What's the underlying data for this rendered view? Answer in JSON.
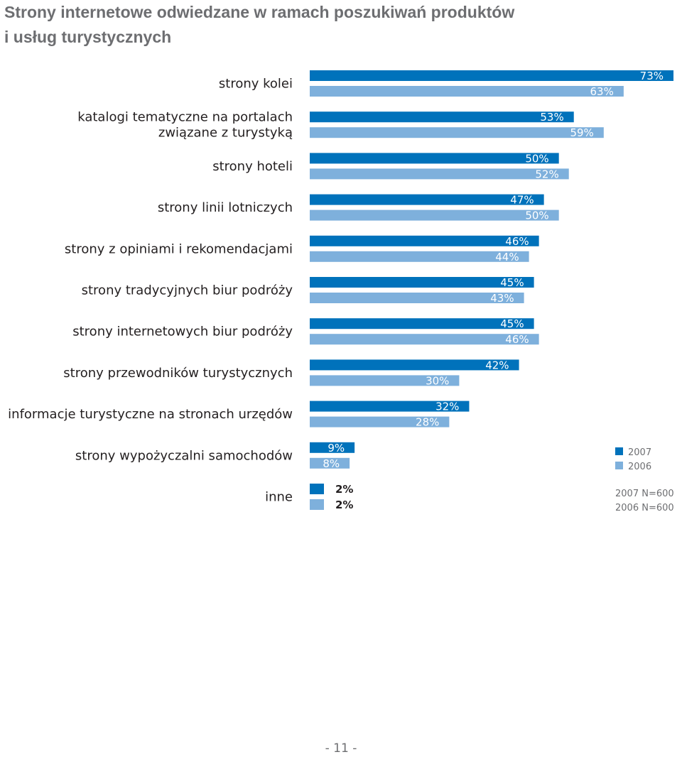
{
  "title": {
    "line1": "Strony internetowe odwiedzane w ramach poszukiwań produktów",
    "line2": "i usług turystycznych"
  },
  "colors": {
    "series_2007": "#0072bb",
    "series_2006": "#7eb0dc"
  },
  "chart_data": {
    "type": "bar",
    "orientation": "horizontal",
    "xlim": [
      0,
      73
    ],
    "categories": [
      "strony kolei",
      "katalogi tematyczne na portalach\nzwiązane z turystyką",
      "strony hoteli",
      "strony linii lotniczych",
      "strony z opiniami i rekomendacjami",
      "strony tradycyjnych biur podróży",
      "strony internetowych biur podróży",
      "strony przewodników turystycznych",
      "informacje turystyczne na stronach urzędów",
      "strony wypożyczalni samochodów",
      "inne"
    ],
    "series": [
      {
        "name": "2007",
        "values": [
          73,
          53,
          50,
          47,
          46,
          45,
          45,
          42,
          32,
          9,
          2
        ]
      },
      {
        "name": "2006",
        "values": [
          63,
          59,
          52,
          50,
          44,
          43,
          46,
          30,
          28,
          8,
          2
        ]
      }
    ],
    "value_labels": {
      "2007": [
        "73%",
        "53%",
        "50%",
        "47%",
        "46%",
        "45%",
        "45%",
        "42%",
        "32%",
        "9%",
        "2%"
      ],
      "2006": [
        "63%",
        "59%",
        "52%",
        "50%",
        "44%",
        "43%",
        "46%",
        "30%",
        "28%",
        "8%",
        "2%"
      ]
    },
    "legend": {
      "placement": "right",
      "entries": [
        "2007",
        "2006"
      ],
      "notes": [
        "2007 N=600",
        "2006 N=600"
      ]
    },
    "grid": false
  },
  "footer": {
    "page_number": "- 11 -"
  }
}
